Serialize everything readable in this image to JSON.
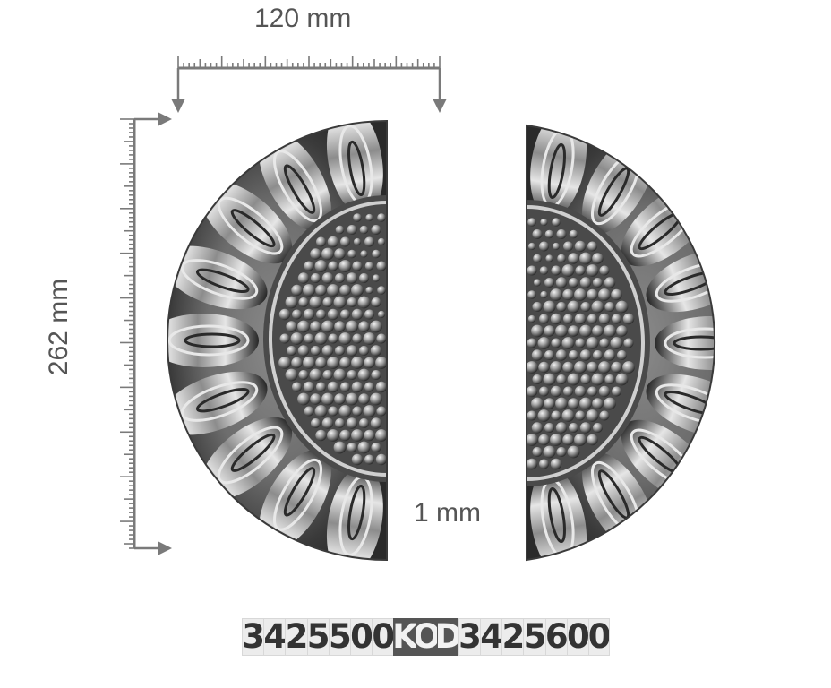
{
  "dimensions": {
    "width": "120 mm",
    "height": "262 mm",
    "thickness": "1 mm"
  },
  "code": {
    "prefix_digits": [
      "3",
      "4",
      "2",
      "5",
      "5",
      "0",
      "0"
    ],
    "key_letters": [
      "K",
      "O",
      "D"
    ],
    "suffix_digits": [
      "3",
      "4",
      "2",
      "5",
      "6",
      "0",
      "0"
    ]
  },
  "colors": {
    "label_text": "#555555",
    "ruler": "#7a7a7a",
    "metal_dark": "#2b2b2b",
    "metal_mid": "#6b6b6b",
    "metal_light": "#d9d9d9",
    "code_cell_bg": "#ececec",
    "code_key_bg": "#555555"
  },
  "icons": {
    "ornament": "embossed-half-rosette",
    "arrow": "arrow-head"
  }
}
